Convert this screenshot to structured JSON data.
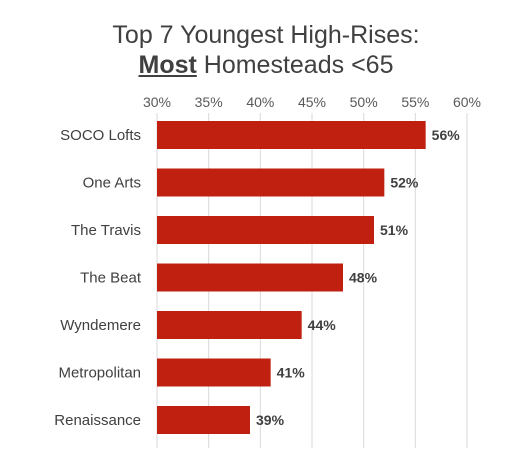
{
  "title": {
    "line1": "Top 7 Youngest High-Rises:",
    "line2_bold": "Most",
    "line2_rest": " Homesteads <65"
  },
  "colors": {
    "bar": "#c0200f",
    "grid": "#d9d9d9",
    "text": "#404040"
  },
  "chart_data": {
    "type": "bar",
    "orientation": "horizontal",
    "title": "Top 7 Youngest High-Rises: Most Homesteads <65",
    "categories": [
      "SOCO Lofts",
      "One Arts",
      "The Travis",
      "The Beat",
      "Wyndemere",
      "Metropolitan",
      "Renaissance"
    ],
    "values": [
      56,
      52,
      51,
      48,
      44,
      41,
      39
    ],
    "data_labels": [
      "56%",
      "52%",
      "51%",
      "48%",
      "44%",
      "41%",
      "39%"
    ],
    "xlim": [
      30,
      60
    ],
    "xticks": [
      30,
      35,
      40,
      45,
      50,
      55,
      60
    ],
    "xtick_labels": [
      "30%",
      "35%",
      "40%",
      "45%",
      "50%",
      "55%",
      "60%"
    ],
    "x_axis_position": "top",
    "grid": true,
    "legend": "none"
  }
}
